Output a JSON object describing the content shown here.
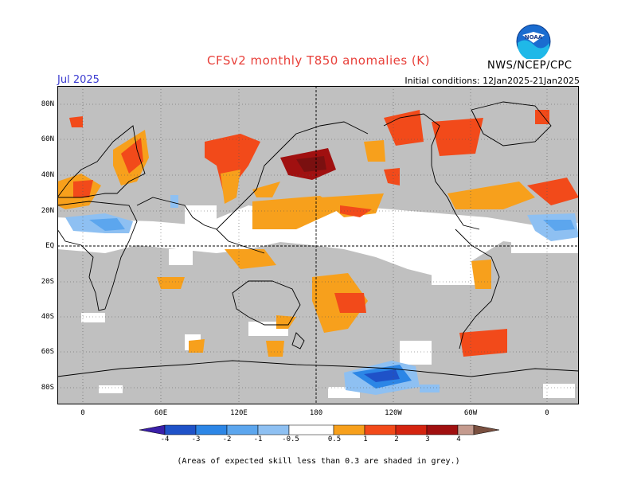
{
  "header": {
    "title": "CFSv2 monthly T850 anomalies (K)",
    "month": "Jul 2025",
    "initial_conditions": "Initial conditions: 12Jan2025-21Jan2025",
    "organization": "NWS/NCEP/CPC",
    "logo_text": "NOAA"
  },
  "map": {
    "lat_labels": [
      "80N",
      "60N",
      "40N",
      "20N",
      "EQ",
      "20S",
      "40S",
      "60S",
      "80S"
    ],
    "lon_labels": [
      "0",
      "60E",
      "120E",
      "180",
      "120W",
      "60W",
      "0"
    ]
  },
  "colorbar": {
    "labels": [
      "-4",
      "-3",
      "-2",
      "-1",
      "-0.5",
      "0.5",
      "1",
      "2",
      "3",
      "4"
    ],
    "colors": [
      "#3a1fa8",
      "#1f52c8",
      "#2c86e6",
      "#5ca6ee",
      "#8ec0f2",
      "#ffffff",
      "#f7a01c",
      "#f24a1a",
      "#d42410",
      "#a01010",
      "#c49a8e",
      "#7a5040"
    ]
  },
  "footer": {
    "note": "(Areas of expected skill less than 0.3 are shaded in grey.)"
  }
}
